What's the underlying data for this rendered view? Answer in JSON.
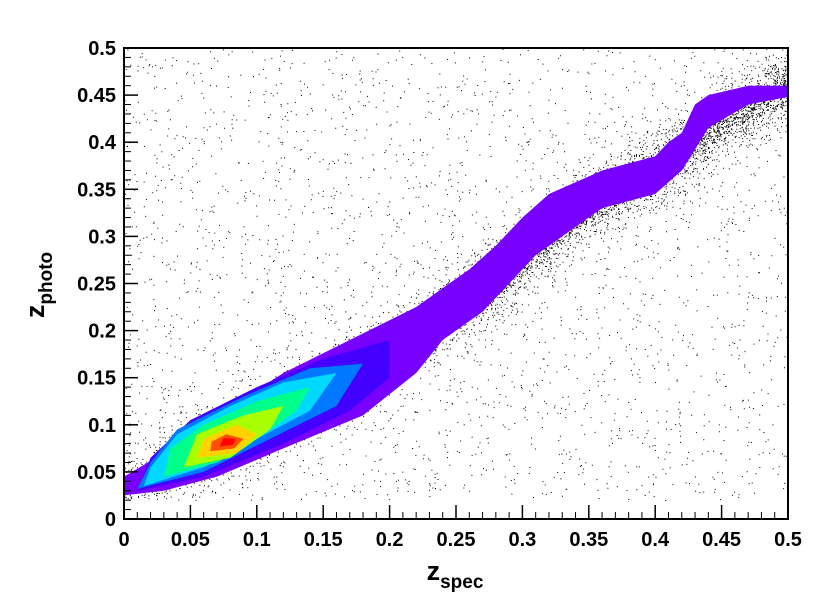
{
  "chart_data": {
    "type": "heatmap",
    "subtype": "density-contour-with-scatter",
    "xlabel": "z",
    "xlabel_sub": "spec",
    "ylabel": "z",
    "ylabel_sub": "photo",
    "xlim": [
      0,
      0.5
    ],
    "ylim": [
      0,
      0.5
    ],
    "x_ticks": [
      "0",
      "0.05",
      "0.1",
      "0.15",
      "0.2",
      "0.25",
      "0.3",
      "0.35",
      "0.4",
      "0.45",
      "0.5"
    ],
    "y_ticks": [
      "0",
      "0.05",
      "0.1",
      "0.15",
      "0.2",
      "0.25",
      "0.3",
      "0.35",
      "0.4",
      "0.45",
      "0.5"
    ],
    "grid": false,
    "legend": "none",
    "palette": [
      "#7b00ff",
      "#4a00ff",
      "#0070ff",
      "#00d7ff",
      "#00ff80",
      "#a0ff00",
      "#ffd000",
      "#ff5000",
      "#ff0000"
    ],
    "contour_levels": [
      {
        "level": 1,
        "color": "#7800ff",
        "polygon": [
          [
            0,
            0.025
          ],
          [
            0.03,
            0.03
          ],
          [
            0.07,
            0.045
          ],
          [
            0.12,
            0.075
          ],
          [
            0.18,
            0.11
          ],
          [
            0.22,
            0.155
          ],
          [
            0.24,
            0.19
          ],
          [
            0.27,
            0.22
          ],
          [
            0.31,
            0.28
          ],
          [
            0.36,
            0.33
          ],
          [
            0.4,
            0.345
          ],
          [
            0.42,
            0.37
          ],
          [
            0.44,
            0.415
          ],
          [
            0.47,
            0.44
          ],
          [
            0.5,
            0.448
          ],
          [
            0.5,
            0.46
          ],
          [
            0.47,
            0.46
          ],
          [
            0.44,
            0.45
          ],
          [
            0.43,
            0.44
          ],
          [
            0.42,
            0.41
          ],
          [
            0.41,
            0.4
          ],
          [
            0.4,
            0.385
          ],
          [
            0.36,
            0.37
          ],
          [
            0.32,
            0.345
          ],
          [
            0.3,
            0.32
          ],
          [
            0.28,
            0.29
          ],
          [
            0.26,
            0.265
          ],
          [
            0.22,
            0.225
          ],
          [
            0.17,
            0.19
          ],
          [
            0.12,
            0.155
          ],
          [
            0.07,
            0.11
          ],
          [
            0.03,
            0.07
          ],
          [
            0,
            0.045
          ]
        ]
      },
      {
        "level": 2,
        "color": "#4400ff",
        "polygon": [
          [
            0.01,
            0.03
          ],
          [
            0.06,
            0.045
          ],
          [
            0.12,
            0.08
          ],
          [
            0.17,
            0.115
          ],
          [
            0.2,
            0.15
          ],
          [
            0.2,
            0.19
          ],
          [
            0.15,
            0.17
          ],
          [
            0.1,
            0.14
          ],
          [
            0.05,
            0.105
          ],
          [
            0.02,
            0.065
          ]
        ]
      },
      {
        "level": 3,
        "color": "#0078ff",
        "polygon": [
          [
            0.01,
            0.032
          ],
          [
            0.06,
            0.05
          ],
          [
            0.11,
            0.085
          ],
          [
            0.16,
            0.12
          ],
          [
            0.18,
            0.165
          ],
          [
            0.14,
            0.16
          ],
          [
            0.09,
            0.13
          ],
          [
            0.04,
            0.095
          ],
          [
            0.02,
            0.06
          ]
        ]
      },
      {
        "level": 4,
        "color": "#00d8ff",
        "polygon": [
          [
            0.015,
            0.035
          ],
          [
            0.06,
            0.055
          ],
          [
            0.1,
            0.085
          ],
          [
            0.14,
            0.115
          ],
          [
            0.16,
            0.155
          ],
          [
            0.12,
            0.145
          ],
          [
            0.08,
            0.12
          ],
          [
            0.04,
            0.09
          ],
          [
            0.02,
            0.055
          ]
        ]
      },
      {
        "level": 5,
        "color": "#00ff8a",
        "polygon": [
          [
            0.03,
            0.045
          ],
          [
            0.07,
            0.06
          ],
          [
            0.1,
            0.085
          ],
          [
            0.13,
            0.115
          ],
          [
            0.14,
            0.14
          ],
          [
            0.1,
            0.125
          ],
          [
            0.06,
            0.1
          ],
          [
            0.035,
            0.075
          ]
        ]
      },
      {
        "level": 6,
        "color": "#a8ff00",
        "polygon": [
          [
            0.045,
            0.055
          ],
          [
            0.08,
            0.065
          ],
          [
            0.11,
            0.095
          ],
          [
            0.12,
            0.12
          ],
          [
            0.09,
            0.11
          ],
          [
            0.055,
            0.09
          ]
        ]
      },
      {
        "level": 7,
        "color": "#ffd200",
        "polygon": [
          [
            0.055,
            0.065
          ],
          [
            0.085,
            0.07
          ],
          [
            0.1,
            0.09
          ],
          [
            0.085,
            0.1
          ],
          [
            0.06,
            0.085
          ]
        ]
      },
      {
        "level": 8,
        "color": "#ff4e00",
        "polygon": [
          [
            0.065,
            0.072
          ],
          [
            0.083,
            0.075
          ],
          [
            0.09,
            0.085
          ],
          [
            0.077,
            0.09
          ],
          [
            0.066,
            0.082
          ]
        ]
      },
      {
        "level": 9,
        "color": "#ff0000",
        "polygon": [
          [
            0.072,
            0.077
          ],
          [
            0.082,
            0.079
          ],
          [
            0.084,
            0.085
          ],
          [
            0.075,
            0.086
          ]
        ]
      }
    ],
    "ridge": {
      "x": [
        0,
        0.05,
        0.1,
        0.15,
        0.2,
        0.25,
        0.3,
        0.35,
        0.4,
        0.45,
        0.5
      ],
      "y": [
        0.035,
        0.065,
        0.095,
        0.135,
        0.175,
        0.225,
        0.275,
        0.335,
        0.37,
        0.425,
        0.46
      ]
    },
    "scatter_outliers": "sparse uniform background points"
  }
}
